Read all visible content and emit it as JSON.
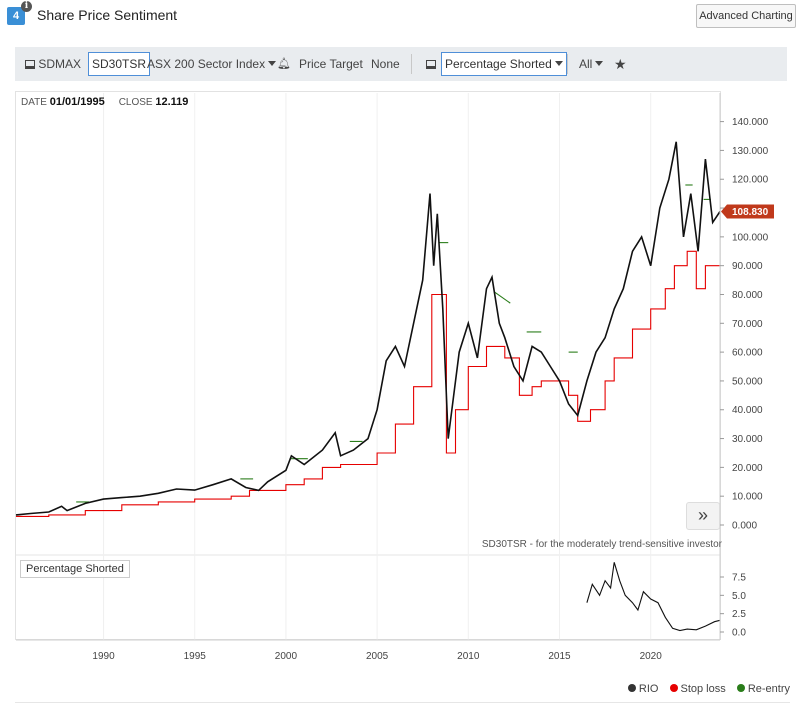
{
  "header": {
    "badge": "4",
    "info_icon": "i",
    "title": "Share Price Sentiment",
    "advanced_button": "Advanced Charting"
  },
  "toolbar": {
    "ticker": "SDMAX",
    "strategy": "SD30TSR",
    "index_select": "ASX 200 Sector Index",
    "price_target_label": "Price Target",
    "price_target_value": "None",
    "indicator_select": "Percentage Shorted",
    "range_select": "All"
  },
  "readout": {
    "date_label": "DATE",
    "date_value": "01/01/1995",
    "close_label": "CLOSE",
    "close_value": "12.119"
  },
  "last_price_tag": "108.830",
  "footnote": "SD30TSR - for the moderately trend-sensitive investor",
  "pane_label": "Percentage Shorted",
  "legend": [
    "RIO",
    "Stop loss",
    "Re-entry"
  ],
  "colors": {
    "price": "#111111",
    "stop": "#e60000",
    "reentry": "#2a7d1a",
    "tag": "#c0391b",
    "accent": "#4f8fd8"
  },
  "chart_data": [
    {
      "type": "line",
      "x_ticks": [
        "1990",
        "1995",
        "2000",
        "2005",
        "2010",
        "2015",
        "2020"
      ],
      "y_ticks": [
        "0.000",
        "10.000",
        "20.000",
        "30.000",
        "40.000",
        "50.000",
        "60.000",
        "70.000",
        "80.000",
        "90.000",
        "100.000",
        "110.000",
        "120.000",
        "130.000",
        "140.000"
      ],
      "xlim": [
        1985.2,
        2023.8
      ],
      "ylim": [
        0,
        140
      ],
      "series": [
        {
          "name": "RIO",
          "color": "#111111",
          "points": [
            [
              1985.2,
              3.5
            ],
            [
              1986,
              4
            ],
            [
              1987,
              4.5
            ],
            [
              1987.7,
              6.5
            ],
            [
              1988,
              5
            ],
            [
              1989,
              7.5
            ],
            [
              1990,
              9
            ],
            [
              1991,
              9.5
            ],
            [
              1992,
              10
            ],
            [
              1993,
              11
            ],
            [
              1994,
              12.5
            ],
            [
              1995,
              12.1
            ],
            [
              1996,
              14
            ],
            [
              1997,
              16
            ],
            [
              1997.8,
              13
            ],
            [
              1998.5,
              12
            ],
            [
              1999,
              15
            ],
            [
              2000,
              19
            ],
            [
              2000.3,
              24
            ],
            [
              2001,
              21
            ],
            [
              2002,
              26
            ],
            [
              2002.7,
              32
            ],
            [
              2003,
              24
            ],
            [
              2003.7,
              26
            ],
            [
              2004.5,
              30
            ],
            [
              2005,
              40
            ],
            [
              2005.5,
              57
            ],
            [
              2006,
              62
            ],
            [
              2006.5,
              55
            ],
            [
              2007,
              70
            ],
            [
              2007.5,
              85
            ],
            [
              2007.9,
              115
            ],
            [
              2008.1,
              90
            ],
            [
              2008.3,
              108
            ],
            [
              2008.6,
              75
            ],
            [
              2008.9,
              30
            ],
            [
              2009.2,
              45
            ],
            [
              2009.5,
              60
            ],
            [
              2010,
              70
            ],
            [
              2010.5,
              58
            ],
            [
              2011,
              82
            ],
            [
              2011.3,
              86
            ],
            [
              2011.7,
              70
            ],
            [
              2012,
              65
            ],
            [
              2012.5,
              55
            ],
            [
              2013,
              50
            ],
            [
              2013.5,
              62
            ],
            [
              2014,
              60
            ],
            [
              2014.5,
              55
            ],
            [
              2015,
              50
            ],
            [
              2015.5,
              42
            ],
            [
              2016,
              38
            ],
            [
              2016.5,
              50
            ],
            [
              2017,
              60
            ],
            [
              2017.5,
              65
            ],
            [
              2018,
              75
            ],
            [
              2018.5,
              82
            ],
            [
              2019,
              95
            ],
            [
              2019.5,
              100
            ],
            [
              2020,
              90
            ],
            [
              2020.5,
              110
            ],
            [
              2021,
              120
            ],
            [
              2021.4,
              133
            ],
            [
              2021.8,
              100
            ],
            [
              2022.2,
              115
            ],
            [
              2022.6,
              95
            ],
            [
              2023,
              127
            ],
            [
              2023.4,
              105
            ],
            [
              2023.8,
              108.8
            ]
          ]
        },
        {
          "name": "Stop loss",
          "color": "#e60000",
          "points": [
            [
              1985.2,
              3
            ],
            [
              1987,
              3.5
            ],
            [
              1989,
              5
            ],
            [
              1991,
              7
            ],
            [
              1993,
              8
            ],
            [
              1995,
              9
            ],
            [
              1997,
              10
            ],
            [
              1998,
              12
            ],
            [
              1999,
              12
            ],
            [
              2000,
              14
            ],
            [
              2001,
              16
            ],
            [
              2002,
              20
            ],
            [
              2003,
              21
            ],
            [
              2004,
              21
            ],
            [
              2005,
              25
            ],
            [
              2006,
              35
            ],
            [
              2007,
              48
            ],
            [
              2008,
              80
            ],
            [
              2008.8,
              25
            ],
            [
              2009.3,
              40
            ],
            [
              2010,
              55
            ],
            [
              2011,
              62
            ],
            [
              2012,
              58
            ],
            [
              2012.8,
              45
            ],
            [
              2013.5,
              48
            ],
            [
              2014,
              50
            ],
            [
              2015,
              50
            ],
            [
              2015.5,
              45
            ],
            [
              2016,
              36
            ],
            [
              2016.7,
              40
            ],
            [
              2017.5,
              50
            ],
            [
              2018,
              58
            ],
            [
              2019,
              68
            ],
            [
              2020,
              75
            ],
            [
              2020.8,
              82
            ],
            [
              2021.3,
              90
            ],
            [
              2022,
              95
            ],
            [
              2022.5,
              82
            ],
            [
              2023,
              90
            ],
            [
              2023.8,
              90
            ]
          ]
        },
        {
          "name": "Re-entry",
          "color": "#2a7d1a",
          "points": [
            [
              1988.5,
              8
            ],
            [
              1989.2,
              8
            ],
            [
              1997.5,
              16
            ],
            [
              1998.2,
              16
            ],
            [
              2000.2,
              23
            ],
            [
              2001.2,
              23
            ],
            [
              2003.5,
              29
            ],
            [
              2004.2,
              29
            ],
            [
              2008.4,
              98
            ],
            [
              2008.9,
              98
            ],
            [
              2011.4,
              81
            ],
            [
              2012.3,
              77
            ],
            [
              2013.2,
              67
            ],
            [
              2014,
              67
            ],
            [
              2015.5,
              60
            ],
            [
              2016,
              60
            ],
            [
              2021.9,
              118
            ],
            [
              2022.3,
              118
            ],
            [
              2022.9,
              113
            ],
            [
              2023.3,
              113
            ]
          ]
        }
      ]
    },
    {
      "type": "line",
      "title": "Percentage Shorted",
      "y_ticks": [
        "0.0",
        "2.5",
        "5.0",
        "7.5"
      ],
      "ylim": [
        -1,
        9.5
      ],
      "series": [
        {
          "name": "Percentage Shorted",
          "color": "#111111",
          "points": [
            [
              2016.5,
              4
            ],
            [
              2016.8,
              6.5
            ],
            [
              2017.2,
              5
            ],
            [
              2017.5,
              7
            ],
            [
              2017.8,
              6
            ],
            [
              2018,
              9.5
            ],
            [
              2018.3,
              7
            ],
            [
              2018.6,
              5
            ],
            [
              2019,
              4
            ],
            [
              2019.3,
              3
            ],
            [
              2019.6,
              5.5
            ],
            [
              2020,
              4.5
            ],
            [
              2020.4,
              4
            ],
            [
              2020.8,
              2
            ],
            [
              2021.2,
              0.5
            ],
            [
              2021.6,
              0.2
            ],
            [
              2022,
              0.4
            ],
            [
              2022.5,
              0.3
            ],
            [
              2023,
              0.8
            ],
            [
              2023.5,
              1.4
            ],
            [
              2023.8,
              1.6
            ]
          ]
        }
      ]
    }
  ]
}
